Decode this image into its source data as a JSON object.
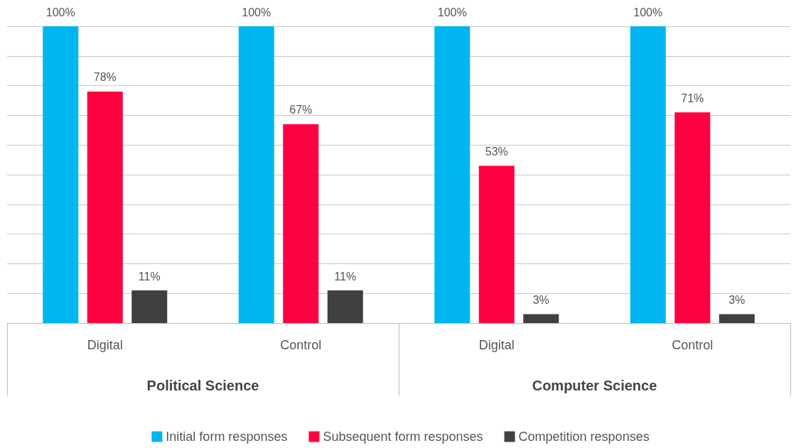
{
  "chart_data": {
    "type": "bar",
    "categories": [
      "Digital",
      "Control",
      "Digital",
      "Control"
    ],
    "annotations": [
      "Political Science",
      "Computer Science"
    ],
    "series": [
      {
        "name": "Initial form responses",
        "color": "#00b6f0",
        "values": [
          100,
          100,
          100,
          100
        ],
        "value_labels": [
          "100%",
          "100%",
          "100%",
          "100%"
        ]
      },
      {
        "name": "Subsequent form responses",
        "color": "#ff0040",
        "values": [
          78,
          67,
          53,
          71
        ],
        "value_labels": [
          "78%",
          "67%",
          "53%",
          "71%"
        ]
      },
      {
        "name": "Competition responses",
        "color": "#404040",
        "values": [
          11,
          11,
          3,
          3
        ],
        "value_labels": [
          "11%",
          "11%",
          "3%",
          "3%"
        ]
      }
    ],
    "ylim": [
      0,
      100
    ],
    "yticks": [
      {
        "value": 0,
        "label": null
      },
      {
        "value": 10,
        "label": null
      },
      {
        "value": 20,
        "label": null
      },
      {
        "value": 30,
        "label": null
      },
      {
        "value": 40,
        "label": null
      },
      {
        "value": 50,
        "label": null
      },
      {
        "value": 60,
        "label": null
      },
      {
        "value": 70,
        "label": null
      },
      {
        "value": 80,
        "label": null
      },
      {
        "value": 90,
        "label": null
      },
      {
        "value": 100,
        "label": null
      }
    ],
    "tick_labels": "x",
    "grid": "y",
    "legend": "bottom"
  }
}
